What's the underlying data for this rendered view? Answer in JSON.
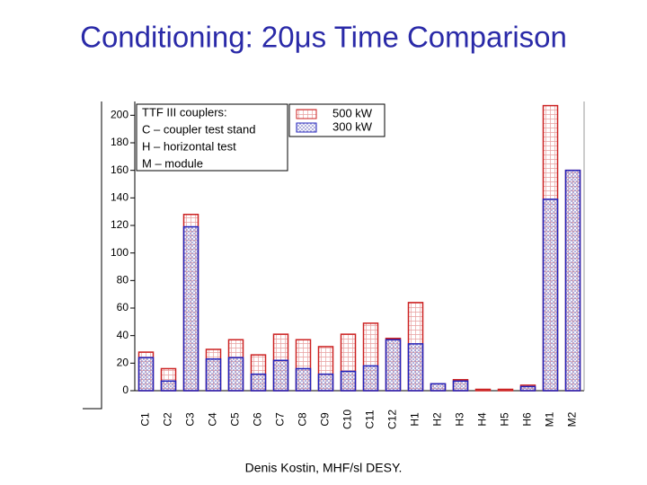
{
  "slide": {
    "title": "Conditioning: 20μs Time Comparison",
    "footer": "Denis Kostin, MHF/sl DESY."
  },
  "chart_data": {
    "type": "bar",
    "categories": [
      "C1",
      "C2",
      "C3",
      "C4",
      "C5",
      "C6",
      "C7",
      "C8",
      "C9",
      "C10",
      "C11",
      "C12",
      "H1",
      "H2",
      "H3",
      "H4",
      "H5",
      "H6",
      "M1",
      "M2"
    ],
    "series": [
      {
        "name": "500 kW",
        "color": "#cc2222",
        "values": [
          28,
          16,
          128,
          30,
          37,
          26,
          41,
          37,
          32,
          41,
          49,
          38,
          64,
          5,
          8,
          1,
          1,
          4,
          207,
          160
        ]
      },
      {
        "name": "300 kW",
        "color": "#2222bb",
        "values": [
          24,
          7,
          119,
          23,
          24,
          12,
          22,
          16,
          12,
          14,
          18,
          37,
          34,
          5,
          7,
          0,
          0,
          3,
          139,
          160
        ]
      }
    ],
    "annotations": [
      "TTF III couplers:",
      "C – coupler test stand",
      "H – horizontal test",
      "M – module"
    ],
    "ylim": [
      0,
      210
    ],
    "yticks": [
      0,
      20,
      40,
      60,
      80,
      100,
      120,
      140,
      160,
      180,
      200
    ]
  }
}
